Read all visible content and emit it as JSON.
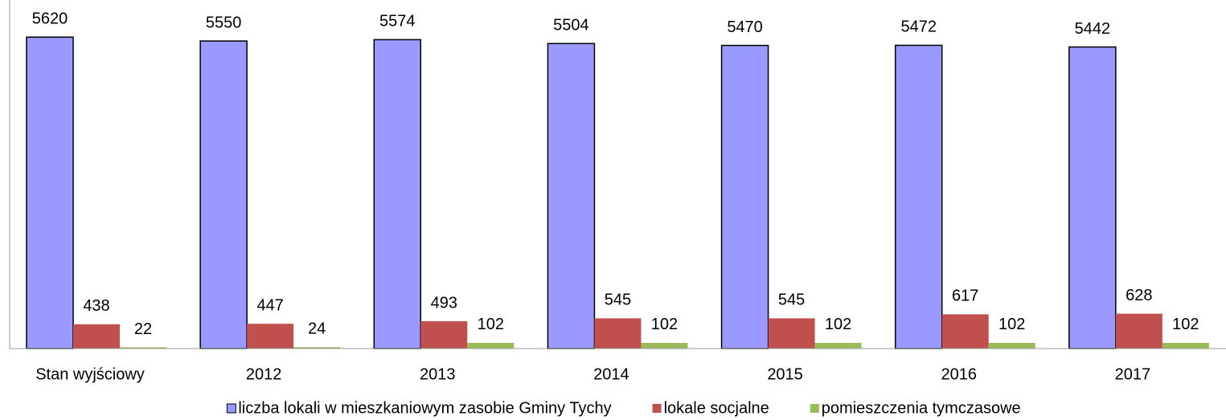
{
  "chart_data": {
    "type": "bar",
    "categories": [
      "Stan wyjściowy",
      "2012",
      "2013",
      "2014",
      "2015",
      "2016",
      "2017"
    ],
    "series": [
      {
        "name": "liczba lokali w mieszkaniowym zasobie Gminy Tychy",
        "color": "#9999ff",
        "values": [
          5620,
          5550,
          5574,
          5504,
          5470,
          5472,
          5442
        ]
      },
      {
        "name": "lokale socjalne",
        "color": "#c0504d",
        "values": [
          438,
          447,
          493,
          545,
          545,
          617,
          628
        ]
      },
      {
        "name": "pomieszczenia tymczasowe",
        "color": "#9bbb59",
        "values": [
          22,
          24,
          102,
          102,
          102,
          102,
          102
        ]
      }
    ],
    "ylim": [
      0,
      6000
    ],
    "legend": "bottom"
  }
}
